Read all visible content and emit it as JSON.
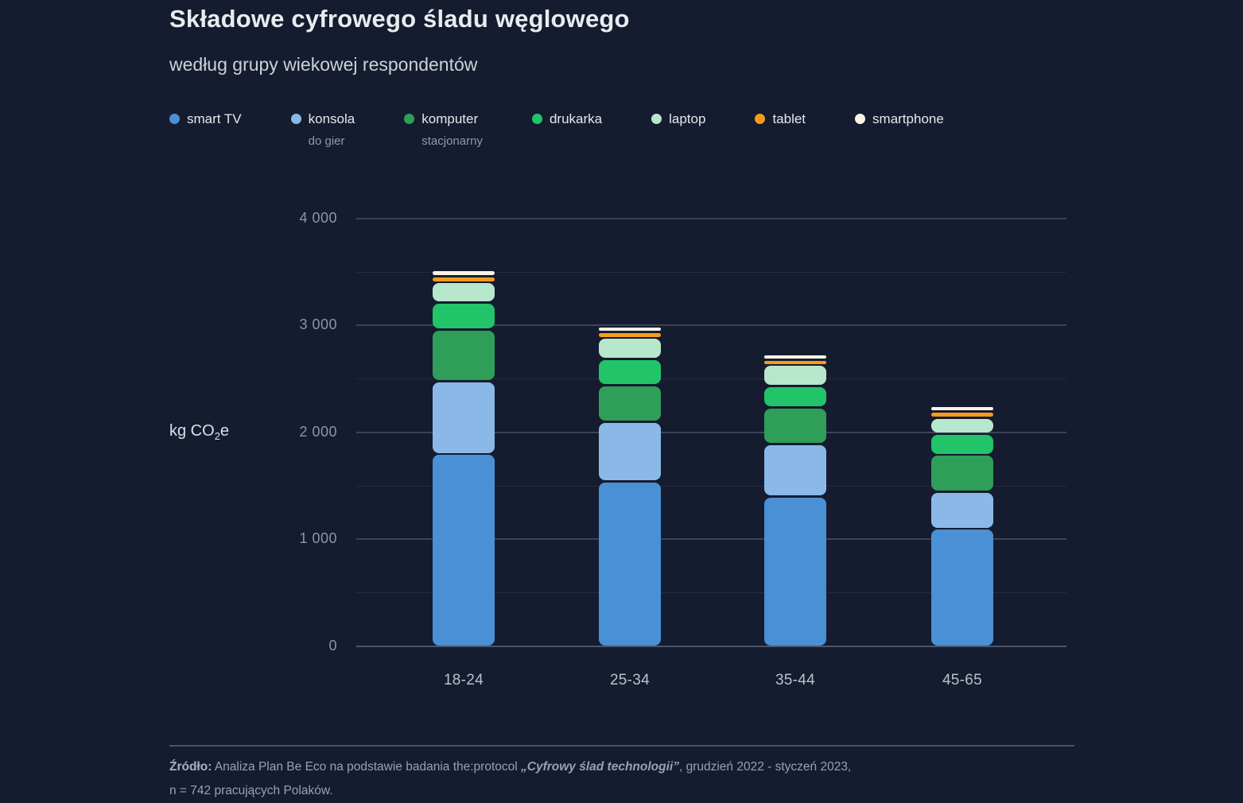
{
  "header": {
    "title": "Składowe cyfrowego śladu węglowego",
    "subtitle": "według grupy wiekowej respondentów"
  },
  "legend": {
    "items": [
      {
        "label": "smart TV",
        "sublabel": "",
        "color": "#4a90d5"
      },
      {
        "label": "konsola",
        "sublabel": "do gier",
        "color": "#8ab9e8"
      },
      {
        "label": "komputer",
        "sublabel": "stacjonarny",
        "color": "#2f9e58"
      },
      {
        "label": "drukarka",
        "sublabel": "",
        "color": "#21c468"
      },
      {
        "label": "laptop",
        "sublabel": "",
        "color": "#b7e7cc"
      },
      {
        "label": "tablet",
        "sublabel": "",
        "color": "#f79b1b"
      },
      {
        "label": "smartphone",
        "sublabel": "",
        "color": "#faf4e6"
      }
    ]
  },
  "chart_data": {
    "type": "bar",
    "stacked": true,
    "title": "Składowe cyfrowego śladu węglowego",
    "subtitle": "według grupy wiekowej respondentów",
    "xlabel": "",
    "ylabel_prefix": "kg CO",
    "ylabel_sub": "2",
    "ylabel_suffix": "e",
    "ylim": [
      0,
      4000
    ],
    "grid": "horizontal, major every 1000 (labeled), minor every 500",
    "legend_position": "top",
    "categories": [
      "18-24",
      "25-34",
      "35-44",
      "45-65"
    ],
    "series": [
      {
        "name": "smart TV",
        "color": "#4a90d5",
        "values": [
          1800,
          1540,
          1400,
          1100
        ]
      },
      {
        "name": "konsola do gier",
        "color": "#8ab9e8",
        "values": [
          680,
          560,
          490,
          345
        ]
      },
      {
        "name": "komputer stacjonarny",
        "color": "#2f9e58",
        "values": [
          480,
          340,
          345,
          345
        ]
      },
      {
        "name": "drukarka",
        "color": "#21c468",
        "values": [
          255,
          245,
          200,
          200
        ]
      },
      {
        "name": "laptop",
        "color": "#b7e7cc",
        "values": [
          190,
          200,
          195,
          145
        ]
      },
      {
        "name": "tablet",
        "color": "#f79b1b",
        "values": [
          55,
          55,
          50,
          60
        ]
      },
      {
        "name": "smartphone",
        "color": "#faf4e6",
        "values": [
          60,
          50,
          50,
          55
        ]
      }
    ],
    "yticks": [
      {
        "value": 0,
        "label": "0"
      },
      {
        "value": 1000,
        "label": "1 000"
      },
      {
        "value": 2000,
        "label": "2 000"
      },
      {
        "value": 3000,
        "label": "3 000"
      },
      {
        "value": 4000,
        "label": "4 000"
      }
    ],
    "y_minor_ticks": [
      500,
      1500,
      2500,
      3500
    ]
  },
  "footer": {
    "source_label": "Źródło:",
    "line1_a": " Analiza Plan Be Eco na podstawie badania the:protocol ",
    "line1_em": "„Cyfrowy ślad technologii”",
    "line1_b": ", grudzień 2022 - styczeń 2023,",
    "line2": "n = 742 pracujących Polaków."
  }
}
